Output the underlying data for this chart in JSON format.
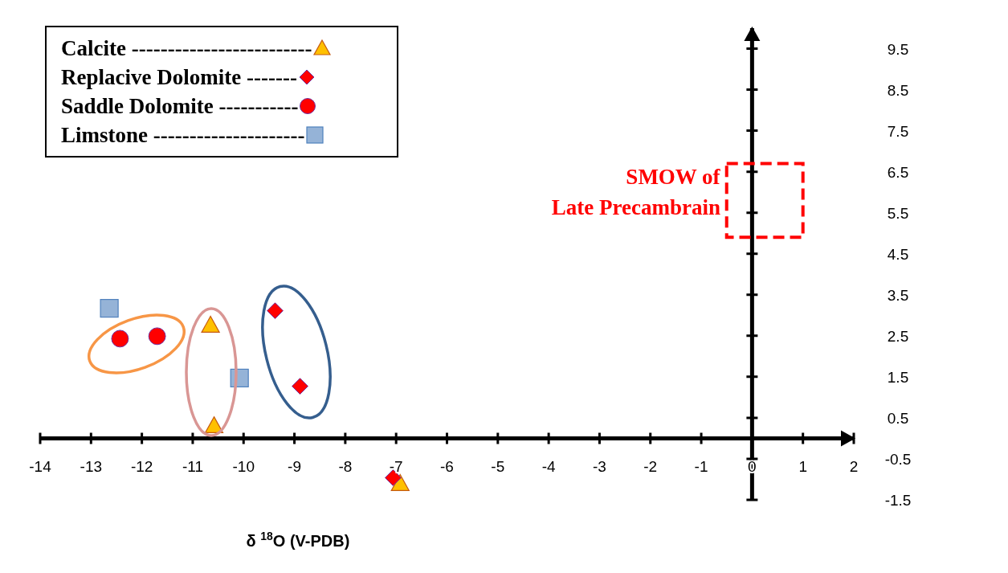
{
  "chart_data": {
    "type": "scatter",
    "xlabel": "δ $^{18}$O (V-PDB)",
    "xlim": [
      -14,
      2
    ],
    "xticks": [
      -14,
      -13,
      -12,
      -11,
      -10,
      -9,
      -8,
      -7,
      -6,
      -5,
      -4,
      -3,
      -2,
      -1,
      0,
      1,
      2
    ],
    "ylim": [
      -1.5,
      10
    ],
    "yticks": [
      -1.5,
      -0.5,
      0.5,
      1.5,
      2.5,
      3.5,
      4.5,
      5.5,
      6.5,
      7.5,
      8.5,
      9.5
    ],
    "legend": "top left",
    "annotations": [
      "SMOW of\nLate Precambrain"
    ],
    "series": [
      {
        "name": "Calcite -------------------------",
        "color": "#ffc000",
        "marker": "triangle",
        "x": [
          -10.65,
          -10.58,
          -6.92
        ],
        "values": [
          2.76,
          0.31,
          -1.1
        ]
      },
      {
        "name": "Replacive Dolomite -------",
        "color": "#ff0000",
        "marker": "diamond",
        "x": [
          -9.38,
          -8.89,
          -7.06
        ],
        "values": [
          3.11,
          1.27,
          -0.96
        ]
      },
      {
        "name": "Saddle Dolomite -----------",
        "color": "#ff0000",
        "marker": "circle",
        "x": [
          -12.43,
          -11.7
        ],
        "values": [
          2.43,
          2.49
        ]
      },
      {
        "name": "Limstone ---------------------",
        "color": "#95b3d7",
        "marker": "square",
        "x": [
          -12.64,
          -10.08
        ],
        "values": [
          3.17,
          1.47
        ]
      }
    ]
  }
}
